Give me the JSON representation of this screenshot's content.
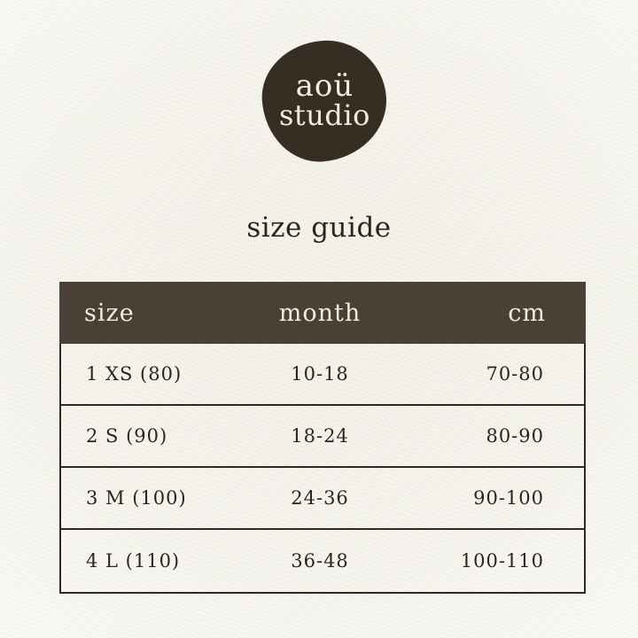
{
  "logo": {
    "line1": "aoü",
    "line2": "studio"
  },
  "title": "size guide",
  "table": {
    "headers": [
      "size",
      "month",
      "cm"
    ],
    "rows": [
      {
        "size": "1 XS (80)",
        "month": "10-18",
        "cm": "70-80"
      },
      {
        "size": "2 S (90)",
        "month": "18-24",
        "cm": "80-90"
      },
      {
        "size": "3 M (100)",
        "month": "24-36",
        "cm": "90-100"
      },
      {
        "size": "4 L (110)",
        "month": "36-48",
        "cm": "100-110"
      }
    ]
  },
  "colors": {
    "paper_background": "#f2f0e7",
    "header_background": "#4a4136",
    "logo_background": "#362d23",
    "cream_text": "#f1ecdd",
    "dark_text": "#2a251e",
    "table_border": "#2e2922"
  }
}
